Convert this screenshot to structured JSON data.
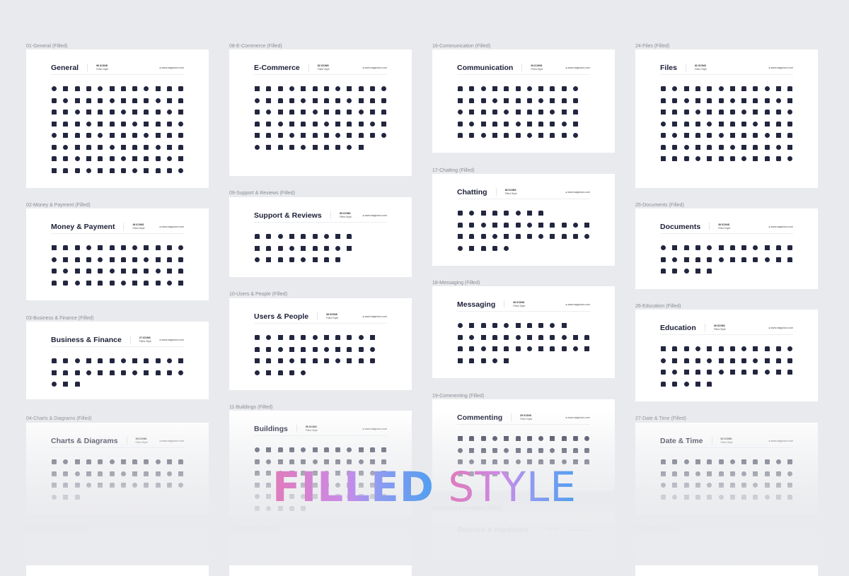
{
  "overlay": {
    "filled": "FILLED",
    "style": "STYLE"
  },
  "site": "www.magicicon.com",
  "style_label": "Filled Style",
  "cards": [
    {
      "label": "01-General (Filled)",
      "title": "General",
      "count": "96 ICONS"
    },
    {
      "label": "02-Money & Payment (Filled)",
      "title": "Money & Payment",
      "count": "49 ICONS"
    },
    {
      "label": "03-Business & Finance (Filled)",
      "title": "Business & Finance",
      "count": "27 ICONS"
    },
    {
      "label": "04-Charts & Diagrams (Filled)",
      "title": "Charts & Diagrams",
      "count": "39 ICONS"
    },
    {
      "label": "05-Location & Map (Filled)",
      "title": "",
      "count": ""
    },
    {
      "label": "08-E-Commerce (Filled)",
      "title": "E-Commerce",
      "count": "82 ICONS"
    },
    {
      "label": "09-Support & Reviews (Filled)",
      "title": "Support & Reviews",
      "count": "26 ICONS"
    },
    {
      "label": "10-Users & People (Filled)",
      "title": "Users & People",
      "count": "38 ICONS"
    },
    {
      "label": "11-Buildings (Filled)",
      "title": "Buildings",
      "count": "55 ICONS"
    },
    {
      "label": "12-Multimedia (Filled)",
      "title": "",
      "count": ""
    },
    {
      "label": "16-Communication (Filled)",
      "title": "Communication",
      "count": "54 ICONS"
    },
    {
      "label": "17-Chatting (Filled)",
      "title": "Chatting",
      "count": "38 ICONS"
    },
    {
      "label": "18-Messaging (Filled)",
      "title": "Messaging",
      "count": "36 ICONS"
    },
    {
      "label": "19-Commenting (Filled)",
      "title": "Commenting",
      "count": "35 ICONS"
    },
    {
      "label": "20-Devices & Hardware (Filled)",
      "title": "Devices & Hardware",
      "count": ""
    },
    {
      "label": "24-Files (Filled)",
      "title": "Files",
      "count": "62 ICONS"
    },
    {
      "label": "25-Documents (Filled)",
      "title": "Documents",
      "count": "26 ICONS"
    },
    {
      "label": "26-Education (Filled)",
      "title": "Education",
      "count": "39 ICONS"
    },
    {
      "label": "27-Date & Time (Filled)",
      "title": "Date & Time",
      "count": "62 ICONS"
    },
    {
      "label": "28-Arrows (Filled)",
      "title": "",
      "count": ""
    }
  ]
}
